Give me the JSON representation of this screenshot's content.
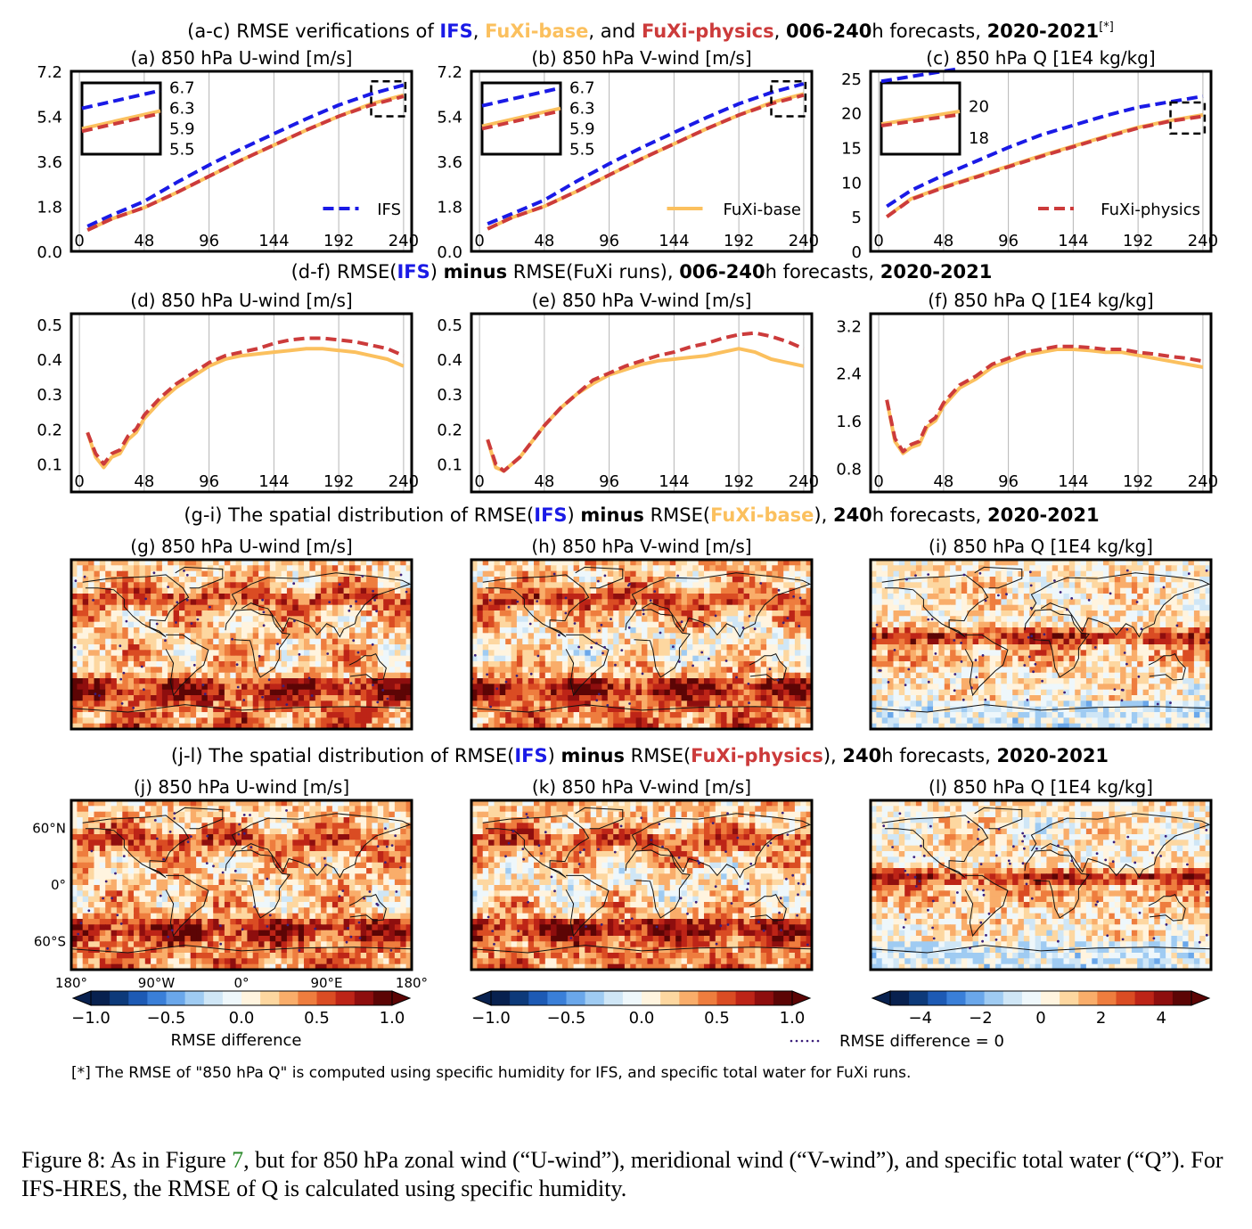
{
  "colors": {
    "ifs": "#1a1ae6",
    "base": "#fbc05e",
    "physics": "#cc3b3b",
    "text": "#000000"
  },
  "headers": {
    "ac": [
      {
        "t": "(a-c) RMSE verifications of ",
        "c": "text",
        "b": false
      },
      {
        "t": "IFS",
        "c": "ifs",
        "b": true
      },
      {
        "t": ", ",
        "c": "text",
        "b": false
      },
      {
        "t": "FuXi-base",
        "c": "base",
        "b": true
      },
      {
        "t": ", and ",
        "c": "text",
        "b": false
      },
      {
        "t": "FuXi-physics",
        "c": "physics",
        "b": true
      },
      {
        "t": ", ",
        "c": "text",
        "b": false
      },
      {
        "t": "006-240",
        "c": "text",
        "b": true
      },
      {
        "t": "h forecasts, ",
        "c": "text",
        "b": false
      },
      {
        "t": "2020-2021",
        "c": "text",
        "b": true
      },
      {
        "t": "[*]",
        "c": "text",
        "b": false,
        "sup": true
      }
    ],
    "df": [
      {
        "t": "(d-f) RMSE(",
        "c": "text",
        "b": false
      },
      {
        "t": "IFS",
        "c": "ifs",
        "b": true
      },
      {
        "t": ") ",
        "c": "text",
        "b": false
      },
      {
        "t": "minus",
        "c": "text",
        "b": true
      },
      {
        "t": " RMSE(FuXi runs), ",
        "c": "text",
        "b": false
      },
      {
        "t": "006-240",
        "c": "text",
        "b": true
      },
      {
        "t": "h forecasts, ",
        "c": "text",
        "b": false
      },
      {
        "t": "2020-2021",
        "c": "text",
        "b": true
      }
    ],
    "gi": [
      {
        "t": "(g-i) The spatial distribution of RMSE(",
        "c": "text",
        "b": false
      },
      {
        "t": "IFS",
        "c": "ifs",
        "b": true
      },
      {
        "t": ") ",
        "c": "text",
        "b": false
      },
      {
        "t": "minus",
        "c": "text",
        "b": true
      },
      {
        "t": " RMSE(",
        "c": "text",
        "b": false
      },
      {
        "t": "FuXi-base",
        "c": "base",
        "b": true
      },
      {
        "t": "), ",
        "c": "text",
        "b": false
      },
      {
        "t": "240",
        "c": "text",
        "b": true
      },
      {
        "t": "h forecasts, ",
        "c": "text",
        "b": false
      },
      {
        "t": "2020-2021",
        "c": "text",
        "b": true
      }
    ],
    "jl": [
      {
        "t": "(j-l) The spatial distribution of RMSE(",
        "c": "text",
        "b": false
      },
      {
        "t": "IFS",
        "c": "ifs",
        "b": true
      },
      {
        "t": ") ",
        "c": "text",
        "b": false
      },
      {
        "t": "minus",
        "c": "text",
        "b": true
      },
      {
        "t": " RMSE(",
        "c": "text",
        "b": false
      },
      {
        "t": "FuXi-physics",
        "c": "physics",
        "b": true
      },
      {
        "t": "), ",
        "c": "text",
        "b": false
      },
      {
        "t": "240",
        "c": "text",
        "b": true
      },
      {
        "t": "h forecasts, ",
        "c": "text",
        "b": false
      },
      {
        "t": "2020-2021",
        "c": "text",
        "b": true
      }
    ]
  },
  "chart_data": [
    {
      "id": "a",
      "type": "line",
      "title": "(a) 850 hPa U-wind [m/s]",
      "x": [
        6,
        24,
        48,
        72,
        96,
        120,
        144,
        168,
        192,
        216,
        240
      ],
      "xticks": [
        0,
        48,
        96,
        144,
        192,
        240
      ],
      "xlim": [
        -6,
        246
      ],
      "ylim": [
        0,
        7.2
      ],
      "yticks": [
        "0.0",
        "1.8",
        "3.6",
        "5.4",
        "7.2"
      ],
      "ytick_values": [
        0,
        1.8,
        3.6,
        5.4,
        7.2
      ],
      "series": [
        {
          "name": "IFS",
          "key": "ifs",
          "dash": "dash",
          "values": [
            1.0,
            1.45,
            2.0,
            2.75,
            3.45,
            4.1,
            4.7,
            5.3,
            5.85,
            6.3,
            6.65
          ]
        },
        {
          "name": "FuXi-base",
          "key": "base",
          "dash": "solid",
          "values": [
            0.85,
            1.3,
            1.75,
            2.35,
            3.0,
            3.65,
            4.25,
            4.85,
            5.4,
            5.9,
            6.25
          ]
        },
        {
          "name": "FuXi-physics",
          "key": "physics",
          "dash": "dash",
          "values": [
            0.85,
            1.3,
            1.75,
            2.35,
            3.0,
            3.65,
            4.25,
            4.85,
            5.4,
            5.85,
            6.2
          ]
        }
      ],
      "legend": {
        "series": "IFS",
        "position": "lower-right"
      },
      "inset": {
        "position": "upper-left",
        "xlim": [
          216,
          240
        ],
        "ylim": [
          5.4,
          6.8
        ],
        "labels": [
          "6.7",
          "6.3",
          "5.9",
          "5.5"
        ],
        "label_values": [
          6.7,
          6.3,
          5.9,
          5.5
        ]
      }
    },
    {
      "id": "b",
      "type": "line",
      "title": "(b) 850 hPa V-wind [m/s]",
      "x": [
        6,
        24,
        48,
        72,
        96,
        120,
        144,
        168,
        192,
        216,
        240
      ],
      "xticks": [
        0,
        48,
        96,
        144,
        192,
        240
      ],
      "xlim": [
        -6,
        246
      ],
      "ylim": [
        0,
        7.2
      ],
      "yticks": [
        "0.0",
        "1.8",
        "3.6",
        "5.4",
        "7.2"
      ],
      "ytick_values": [
        0,
        1.8,
        3.6,
        5.4,
        7.2
      ],
      "series": [
        {
          "name": "IFS",
          "key": "ifs",
          "dash": "dash",
          "values": [
            1.1,
            1.5,
            2.05,
            2.8,
            3.5,
            4.15,
            4.75,
            5.35,
            5.9,
            6.35,
            6.7
          ]
        },
        {
          "name": "FuXi-base",
          "key": "base",
          "dash": "solid",
          "values": [
            0.9,
            1.35,
            1.8,
            2.4,
            3.05,
            3.7,
            4.3,
            4.9,
            5.45,
            5.95,
            6.3
          ]
        },
        {
          "name": "FuXi-physics",
          "key": "physics",
          "dash": "dash",
          "values": [
            0.9,
            1.35,
            1.8,
            2.4,
            3.05,
            3.7,
            4.3,
            4.9,
            5.45,
            5.9,
            6.25
          ]
        }
      ],
      "legend": {
        "series": "FuXi-base",
        "position": "lower-right"
      },
      "inset": {
        "position": "upper-left",
        "xlim": [
          216,
          240
        ],
        "ylim": [
          5.4,
          6.8
        ],
        "labels": [
          "6.7",
          "6.3",
          "5.9",
          "5.5"
        ],
        "label_values": [
          6.7,
          6.3,
          5.9,
          5.5
        ]
      }
    },
    {
      "id": "c",
      "type": "line",
      "title": "(c) 850 hPa Q [1E4 kg/kg]",
      "x": [
        6,
        24,
        48,
        72,
        96,
        120,
        144,
        168,
        192,
        216,
        240
      ],
      "xticks": [
        0,
        48,
        96,
        144,
        192,
        240
      ],
      "xlim": [
        -6,
        246
      ],
      "ylim": [
        0,
        26
      ],
      "yticks": [
        "0",
        "5",
        "10",
        "15",
        "20",
        "25"
      ],
      "ytick_values": [
        0,
        5,
        10,
        15,
        20,
        25
      ],
      "series": [
        {
          "name": "IFS",
          "key": "ifs",
          "dash": "dash",
          "values": [
            6.5,
            8.8,
            11.0,
            13.0,
            15.0,
            16.8,
            18.2,
            19.6,
            20.8,
            21.6,
            22.4
          ]
        },
        {
          "name": "FuXi-base",
          "key": "base",
          "dash": "solid",
          "values": [
            5.0,
            7.6,
            9.3,
            10.8,
            12.3,
            13.8,
            15.2,
            16.6,
            17.9,
            18.9,
            19.7
          ]
        },
        {
          "name": "FuXi-physics",
          "key": "physics",
          "dash": "dash",
          "values": [
            5.0,
            7.5,
            9.2,
            10.7,
            12.2,
            13.7,
            15.1,
            16.5,
            17.8,
            18.8,
            19.5
          ]
        }
      ],
      "legend": {
        "series": "FuXi-physics",
        "position": "lower-right"
      },
      "inset": {
        "position": "upper-left",
        "xlim": [
          216,
          240
        ],
        "ylim": [
          17,
          21.5
        ],
        "labels": [
          "20",
          "18"
        ],
        "label_values": [
          20,
          18
        ]
      }
    },
    {
      "id": "d",
      "type": "line",
      "title": "(d) 850 hPa U-wind [m/s]",
      "x": [
        6,
        12,
        18,
        24,
        30,
        36,
        42,
        48,
        60,
        72,
        84,
        96,
        108,
        120,
        132,
        144,
        156,
        168,
        180,
        192,
        204,
        216,
        228,
        240
      ],
      "xticks": [
        0,
        48,
        96,
        144,
        192,
        240
      ],
      "xlim": [
        -6,
        246
      ],
      "ylim": [
        0.02,
        0.53
      ],
      "yticks": [
        "0.1",
        "0.2",
        "0.3",
        "0.4",
        "0.5"
      ],
      "ytick_values": [
        0.1,
        0.2,
        0.3,
        0.4,
        0.5
      ],
      "series": [
        {
          "name": "FuXi-base",
          "key": "base",
          "dash": "solid",
          "values": [
            0.19,
            0.12,
            0.09,
            0.12,
            0.13,
            0.17,
            0.19,
            0.23,
            0.28,
            0.32,
            0.35,
            0.38,
            0.4,
            0.41,
            0.415,
            0.42,
            0.425,
            0.43,
            0.43,
            0.425,
            0.42,
            0.41,
            0.4,
            0.38
          ]
        },
        {
          "name": "FuXi-physics",
          "key": "physics",
          "dash": "dash",
          "values": [
            0.19,
            0.13,
            0.1,
            0.13,
            0.14,
            0.18,
            0.2,
            0.24,
            0.29,
            0.33,
            0.36,
            0.39,
            0.41,
            0.42,
            0.43,
            0.445,
            0.455,
            0.46,
            0.46,
            0.455,
            0.45,
            0.44,
            0.43,
            0.41
          ]
        }
      ]
    },
    {
      "id": "e",
      "type": "line",
      "title": "(e) 850 hPa V-wind [m/s]",
      "x": [
        6,
        12,
        18,
        24,
        30,
        36,
        42,
        48,
        60,
        72,
        84,
        96,
        108,
        120,
        132,
        144,
        156,
        168,
        180,
        192,
        204,
        216,
        228,
        240
      ],
      "xticks": [
        0,
        48,
        96,
        144,
        192,
        240
      ],
      "xlim": [
        -6,
        246
      ],
      "ylim": [
        0.02,
        0.53
      ],
      "yticks": [
        "0.1",
        "0.2",
        "0.3",
        "0.4",
        "0.5"
      ],
      "ytick_values": [
        0.1,
        0.2,
        0.3,
        0.4,
        0.5
      ],
      "series": [
        {
          "name": "FuXi-base",
          "key": "base",
          "dash": "solid",
          "values": [
            0.17,
            0.09,
            0.08,
            0.1,
            0.12,
            0.15,
            0.18,
            0.21,
            0.26,
            0.3,
            0.33,
            0.355,
            0.37,
            0.385,
            0.395,
            0.4,
            0.405,
            0.41,
            0.42,
            0.43,
            0.42,
            0.4,
            0.39,
            0.38
          ]
        },
        {
          "name": "FuXi-physics",
          "key": "physics",
          "dash": "dash",
          "values": [
            0.17,
            0.1,
            0.08,
            0.1,
            0.12,
            0.15,
            0.18,
            0.21,
            0.26,
            0.3,
            0.34,
            0.36,
            0.38,
            0.395,
            0.41,
            0.42,
            0.435,
            0.445,
            0.46,
            0.47,
            0.475,
            0.465,
            0.45,
            0.43
          ]
        }
      ]
    },
    {
      "id": "f",
      "type": "line",
      "title": "(f) 850 hPa Q [1E4 kg/kg]",
      "x": [
        6,
        12,
        18,
        24,
        30,
        36,
        42,
        48,
        60,
        72,
        84,
        96,
        108,
        120,
        132,
        144,
        156,
        168,
        180,
        192,
        204,
        216,
        228,
        240
      ],
      "xticks": [
        0,
        48,
        96,
        144,
        192,
        240
      ],
      "xlim": [
        -6,
        246
      ],
      "ylim": [
        0.4,
        3.4
      ],
      "yticks": [
        "0.8",
        "1.6",
        "2.4",
        "3.2"
      ],
      "ytick_values": [
        0.8,
        1.6,
        2.4,
        3.2
      ],
      "series": [
        {
          "name": "FuXi-base",
          "key": "base",
          "dash": "solid",
          "values": [
            1.95,
            1.25,
            1.05,
            1.15,
            1.2,
            1.5,
            1.6,
            1.85,
            2.15,
            2.3,
            2.5,
            2.6,
            2.7,
            2.75,
            2.8,
            2.8,
            2.78,
            2.75,
            2.75,
            2.7,
            2.65,
            2.6,
            2.55,
            2.5
          ]
        },
        {
          "name": "FuXi-physics",
          "key": "physics",
          "dash": "dash",
          "values": [
            1.95,
            1.3,
            1.08,
            1.2,
            1.25,
            1.55,
            1.65,
            1.9,
            2.2,
            2.35,
            2.55,
            2.65,
            2.75,
            2.8,
            2.85,
            2.85,
            2.83,
            2.8,
            2.8,
            2.75,
            2.72,
            2.68,
            2.65,
            2.6
          ]
        }
      ]
    },
    {
      "id": "g",
      "type": "heatmap",
      "title": "(g) 850 hPa U-wind [m/s]",
      "field": "u",
      "variant": "base"
    },
    {
      "id": "h",
      "type": "heatmap",
      "title": "(h) 850 hPa V-wind [m/s]",
      "field": "v",
      "variant": "base"
    },
    {
      "id": "i",
      "type": "heatmap",
      "title": "(i) 850 hPa Q [1E4 kg/kg]",
      "field": "q",
      "variant": "base"
    },
    {
      "id": "j",
      "type": "heatmap",
      "title": "(j) 850 hPa U-wind [m/s]",
      "field": "u",
      "variant": "physics",
      "lat_ticks": [
        "60°N",
        "0°",
        "60°S"
      ],
      "lat_values": [
        60,
        0,
        -60
      ],
      "lon_ticks": [
        "180°",
        "90°W",
        "0°",
        "90°E",
        "180°"
      ],
      "lon_values": [
        -180,
        -90,
        0,
        90,
        180
      ]
    },
    {
      "id": "k",
      "type": "heatmap",
      "title": "(k) 850 hPa V-wind [m/s]",
      "field": "v",
      "variant": "physics"
    },
    {
      "id": "l",
      "type": "heatmap",
      "title": "(l) 850 hPa Q [1E4 kg/kg]",
      "field": "q",
      "variant": "physics"
    }
  ],
  "colorbars": [
    {
      "id": "wind-u",
      "range": [
        -1.0,
        1.0
      ],
      "ticks": [
        "−1.0",
        "−0.5",
        "0.0",
        "0.5",
        "1.0"
      ],
      "tick_values": [
        -1.0,
        -0.5,
        0.0,
        0.5,
        1.0
      ],
      "label": "RMSE difference"
    },
    {
      "id": "wind-v",
      "range": [
        -1.0,
        1.0
      ],
      "ticks": [
        "−1.0",
        "−0.5",
        "0.0",
        "0.5",
        "1.0"
      ],
      "tick_values": [
        -1.0,
        -0.5,
        0.0,
        0.5,
        1.0
      ],
      "label": ""
    },
    {
      "id": "q",
      "range": [
        -5,
        5
      ],
      "ticks": [
        "−4",
        "−2",
        "0",
        "2",
        "4"
      ],
      "tick_values": [
        -4,
        -2,
        0,
        2,
        4
      ],
      "label": ""
    }
  ],
  "colormap": [
    "#08214f",
    "#0d3a7a",
    "#1d5ab4",
    "#3a7fd8",
    "#6aa7ea",
    "#9fcbf2",
    "#cfe6f6",
    "#eef7fb",
    "#fff4df",
    "#fdd7a0",
    "#f9ad6a",
    "#ee7d3e",
    "#da4c23",
    "#bd2417",
    "#8e0e0e",
    "#5c0505"
  ],
  "zero_legend": "RMSE difference = 0",
  "footnote": "[*] The RMSE of \"850 hPa Q\" is computed using specific humidity for IFS, and specific total water for FuXi runs.",
  "caption": {
    "before": "Figure 8: As in Figure ",
    "ref": "7",
    "after": ", but for 850 hPa zonal wind (“U-wind”), meridional wind (“V-wind”), and specific total water (“Q”). For IFS-HRES, the RMSE of Q is calculated using specific humidity."
  }
}
